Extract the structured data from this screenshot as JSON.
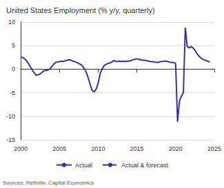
{
  "chart_data": {
    "type": "line",
    "title": "United States Employment (% y/y, quarterly)",
    "source": "Sources: Refinitiv, Capital Economics",
    "x": [
      2000,
      2000.25,
      2000.5,
      2000.75,
      2001,
      2001.25,
      2001.5,
      2001.75,
      2002,
      2002.25,
      2002.5,
      2002.75,
      2003,
      2003.25,
      2003.5,
      2003.75,
      2004,
      2004.25,
      2004.5,
      2004.75,
      2005,
      2005.25,
      2005.5,
      2005.75,
      2006,
      2006.25,
      2006.5,
      2006.75,
      2007,
      2007.25,
      2007.5,
      2007.75,
      2008,
      2008.25,
      2008.5,
      2008.75,
      2009,
      2009.25,
      2009.5,
      2009.75,
      2010,
      2010.25,
      2010.5,
      2010.75,
      2011,
      2011.25,
      2011.5,
      2011.75,
      2012,
      2012.25,
      2012.5,
      2012.75,
      2013,
      2013.25,
      2013.5,
      2013.75,
      2014,
      2014.25,
      2014.5,
      2014.75,
      2015,
      2015.25,
      2015.5,
      2015.75,
      2016,
      2016.25,
      2016.5,
      2016.75,
      2017,
      2017.25,
      2017.5,
      2017.75,
      2018,
      2018.25,
      2018.5,
      2018.75,
      2019,
      2019.25,
      2019.5,
      2019.75,
      2020,
      2020.25,
      2020.5,
      2020.75,
      2021,
      2021.25,
      2021.5,
      2021.75,
      2022,
      2022.25,
      2022.5,
      2022.75,
      2023,
      2023.25,
      2023.5,
      2023.75,
      2024,
      2024.25,
      2024.5,
      2024.75
    ],
    "series": [
      {
        "name": "Actual",
        "color": "#3b2db0",
        "line_style": "solid",
        "values": [
          2.5,
          2.5,
          2.2,
          1.8,
          1.2,
          0.5,
          -0.2,
          -0.8,
          -1.3,
          -1.2,
          -1.0,
          -0.7,
          -0.3,
          -0.3,
          -0.2,
          0.0,
          0.5,
          1.0,
          1.4,
          1.5,
          1.6,
          1.7,
          1.6,
          1.8,
          1.9,
          2.0,
          1.9,
          1.7,
          1.6,
          1.4,
          1.2,
          1.0,
          0.6,
          0.0,
          -0.8,
          -2.0,
          -3.5,
          -4.6,
          -4.8,
          -4.2,
          -3.0,
          -1.0,
          0.0,
          0.7,
          1.0,
          1.2,
          1.3,
          1.5,
          1.8,
          1.7,
          1.6,
          1.7,
          1.6,
          1.7,
          1.6,
          1.7,
          1.7,
          1.8,
          2.0,
          2.1,
          2.2,
          2.1,
          2.0,
          1.9,
          1.9,
          1.8,
          1.7,
          1.6,
          1.6,
          1.5,
          1.5,
          1.4,
          1.6,
          1.6,
          1.7,
          1.7,
          1.6,
          1.5,
          1.4,
          1.4,
          1.2,
          -11.2,
          -6.8,
          -5.7,
          -5.0,
          8.8,
          4.8,
          4.5,
          4.8,
          4.5,
          4.0,
          3.3,
          2.8,
          2.4,
          2.1,
          1.9,
          null,
          null,
          null,
          null
        ]
      },
      {
        "name": "Actual & forecast",
        "color": "#3b2db0",
        "line_style": "dashed",
        "values": [
          null,
          null,
          null,
          null,
          null,
          null,
          null,
          null,
          null,
          null,
          null,
          null,
          null,
          null,
          null,
          null,
          null,
          null,
          null,
          null,
          null,
          null,
          null,
          null,
          null,
          null,
          null,
          null,
          null,
          null,
          null,
          null,
          null,
          null,
          null,
          null,
          null,
          null,
          null,
          null,
          null,
          null,
          null,
          null,
          null,
          null,
          null,
          null,
          null,
          null,
          null,
          null,
          null,
          null,
          null,
          null,
          null,
          null,
          null,
          null,
          null,
          null,
          null,
          null,
          null,
          null,
          null,
          null,
          null,
          null,
          null,
          null,
          null,
          null,
          null,
          null,
          null,
          null,
          null,
          null,
          null,
          null,
          null,
          null,
          null,
          null,
          null,
          null,
          null,
          null,
          null,
          null,
          null,
          null,
          null,
          1.9,
          1.8,
          1.6,
          1.4,
          1.2
        ]
      }
    ],
    "xlim": [
      2000,
      2025
    ],
    "xticks": [
      2000,
      2005,
      2010,
      2015,
      2020,
      2025
    ],
    "ylim": [
      -15,
      10
    ],
    "yticks": [
      -15,
      -10,
      -5,
      0,
      5,
      10
    ],
    "grid": true,
    "legend": "bottom"
  }
}
